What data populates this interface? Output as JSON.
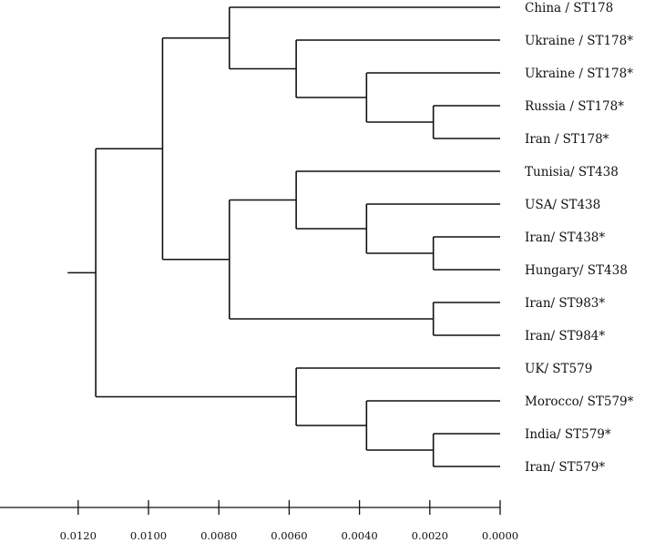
{
  "chart_data": {
    "type": "dendrogram",
    "axis": {
      "ticks": [
        "0.0120",
        "0.0100",
        "0.0080",
        "0.0060",
        "0.0040",
        "0.0020",
        "0.0000"
      ],
      "tick_values": [
        0.012,
        0.01,
        0.008,
        0.006,
        0.004,
        0.002,
        0.0
      ],
      "range": [
        0.0,
        0.0143
      ]
    },
    "root_stub_height": 0.0123,
    "tree": {
      "h": 0.0115,
      "children": [
        {
          "h": 0.0096,
          "children": [
            {
              "h": 0.0077,
              "children": [
                {
                  "label": "China / ST178"
                },
                {
                  "h": 0.0058,
                  "children": [
                    {
                      "label": "Ukraine / ST178*"
                    },
                    {
                      "h": 0.0038,
                      "children": [
                        {
                          "label": "Ukraine / ST178*"
                        },
                        {
                          "h": 0.0019,
                          "children": [
                            {
                              "label": "Russia / ST178*"
                            },
                            {
                              "label": "Iran / ST178*"
                            }
                          ]
                        }
                      ]
                    }
                  ]
                }
              ]
            },
            {
              "h": 0.0077,
              "children": [
                {
                  "h": 0.0058,
                  "children": [
                    {
                      "label": "Tunisia/ ST438"
                    },
                    {
                      "h": 0.0038,
                      "children": [
                        {
                          "label": "USA/ ST438"
                        },
                        {
                          "h": 0.0019,
                          "children": [
                            {
                              "label": "Iran/ ST438*"
                            },
                            {
                              "label": "Hungary/ ST438"
                            }
                          ]
                        }
                      ]
                    }
                  ]
                },
                {
                  "h": 0.0019,
                  "children": [
                    {
                      "label": "Iran/ ST983*"
                    },
                    {
                      "label": "Iran/ ST984*"
                    }
                  ]
                }
              ]
            }
          ]
        },
        {
          "h": 0.0058,
          "children": [
            {
              "label": "UK/ ST579"
            },
            {
              "h": 0.0038,
              "children": [
                {
                  "label": "Morocco/ ST579*"
                },
                {
                  "h": 0.0019,
                  "children": [
                    {
                      "label": "India/ ST579*"
                    },
                    {
                      "label": "Iran/ ST579*"
                    }
                  ]
                }
              ]
            }
          ]
        }
      ]
    }
  }
}
